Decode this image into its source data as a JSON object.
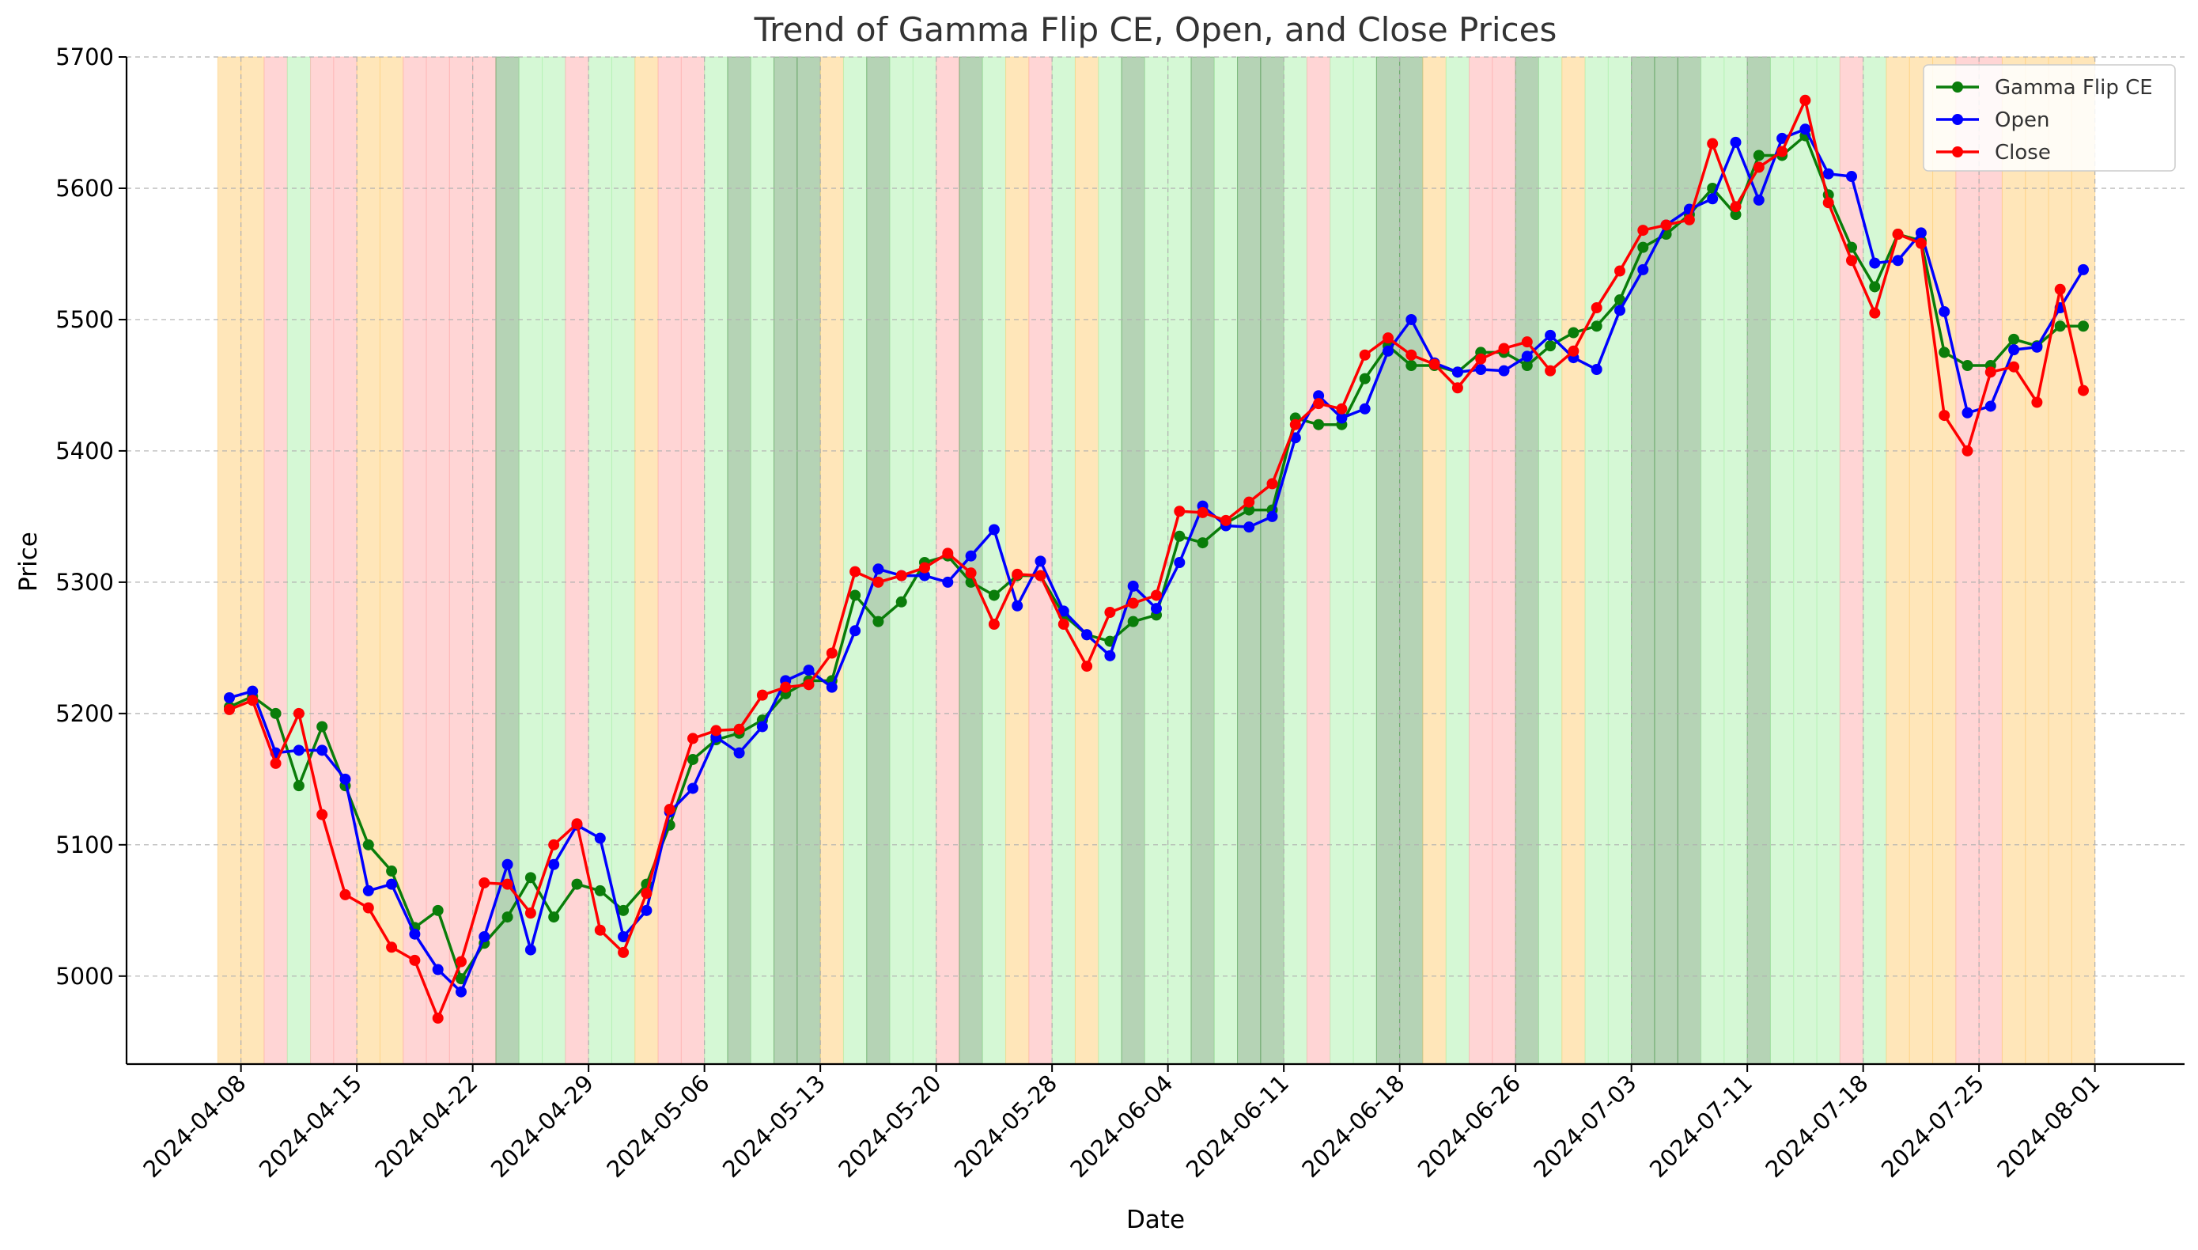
{
  "chart_data": {
    "type": "line",
    "title": "Trend of Gamma Flip CE, Open, and Close Prices",
    "xlabel": "Date",
    "ylabel": "Price",
    "ylim": [
      4933,
      5700
    ],
    "yticks": [
      5000,
      5100,
      5200,
      5300,
      5400,
      5500,
      5600,
      5700
    ],
    "x_tick_labels": [
      "2024-04-08",
      "2024-04-15",
      "2024-04-22",
      "2024-04-29",
      "2024-05-06",
      "2024-05-13",
      "2024-05-20",
      "2024-05-28",
      "2024-06-04",
      "2024-06-11",
      "2024-06-18",
      "2024-06-26",
      "2024-07-03",
      "2024-07-11",
      "2024-07-18",
      "2024-07-25",
      "2024-08-01"
    ],
    "x_tick_index": [
      0.5,
      5.5,
      10.5,
      15.5,
      20.5,
      25.5,
      30.5,
      35.5,
      40.5,
      45.5,
      50.5,
      55.5,
      60.5,
      65.5,
      70.5,
      75.5,
      80.5
    ],
    "grid": true,
    "legend_position": "top-right",
    "background_band_colors": {
      "O": "#ffd27f",
      "R": "#ffb3b3",
      "L": "#b3f2b3",
      "D": "#5a9e5a"
    },
    "background_bands": "OORLRROORRRRDLLRLLORRLDLDDOLDLLRDLORLOLDLLDLDDLRLLDDOLRRDLOLLDDDLLDLLLRLOOORROOOOO",
    "series": [
      {
        "name": "Gamma Flip CE",
        "color": "#0a7d0a",
        "values": [
          5205,
          5213,
          5200,
          5145,
          5190,
          5145,
          5100,
          5080,
          5037,
          5050,
          4998,
          5025,
          5045,
          5075,
          5045,
          5070,
          5065,
          5050,
          5070,
          5115,
          5165,
          5180,
          5185,
          5195,
          5215,
          5225,
          5225,
          5290,
          5270,
          5285,
          5315,
          5320,
          5300,
          5290,
          5305,
          5305,
          5275,
          5260,
          5255,
          5270,
          5275,
          5335,
          5330,
          5345,
          5355,
          5355,
          5425,
          5420,
          5420,
          5455,
          5480,
          5465,
          5465,
          5460,
          5475,
          5475,
          5465,
          5480,
          5490,
          5495,
          5515,
          5555,
          5565,
          5580,
          5600,
          5580,
          5625,
          5625,
          5640,
          5595,
          5555,
          5525,
          5565,
          5560,
          5475,
          5465,
          5465,
          5485,
          5480,
          5495,
          5495
        ]
      },
      {
        "name": "Open",
        "color": "#0000ff",
        "values": [
          5212,
          5217,
          5170,
          5172,
          5172,
          5150,
          5065,
          5070,
          5032,
          5005,
          4988,
          5030,
          5085,
          5020,
          5085,
          5115,
          5105,
          5030,
          5050,
          5125,
          5143,
          5182,
          5170,
          5190,
          5225,
          5233,
          5220,
          5263,
          5310,
          5305,
          5305,
          5300,
          5320,
          5340,
          5282,
          5316,
          5278,
          5260,
          5244,
          5297,
          5280,
          5315,
          5358,
          5343,
          5342,
          5350,
          5410,
          5442,
          5425,
          5432,
          5476,
          5500,
          5467,
          5460,
          5462,
          5461,
          5472,
          5488,
          5471,
          5462,
          5507,
          5538,
          5572,
          5584,
          5592,
          5635,
          5591,
          5638,
          5645,
          5611,
          5609,
          5543,
          5545,
          5566,
          5506,
          5429,
          5434,
          5477,
          5479,
          5509,
          5538
        ]
      },
      {
        "name": "Close",
        "color": "#ff0000",
        "values": [
          5203,
          5210,
          5162,
          5200,
          5123,
          5062,
          5052,
          5022,
          5012,
          4968,
          5011,
          5071,
          5070,
          5048,
          5100,
          5116,
          5035,
          5018,
          5063,
          5127,
          5181,
          5187,
          5188,
          5214,
          5220,
          5222,
          5246,
          5308,
          5300,
          5305,
          5311,
          5322,
          5307,
          5268,
          5306,
          5305,
          5268,
          5236,
          5277,
          5284,
          5290,
          5354,
          5353,
          5347,
          5361,
          5375,
          5420,
          5436,
          5432,
          5473,
          5486,
          5473,
          5466,
          5448,
          5470,
          5478,
          5483,
          5461,
          5476,
          5509,
          5537,
          5568,
          5572,
          5576,
          5634,
          5586,
          5616,
          5628,
          5667,
          5589,
          5545,
          5505,
          5565,
          5558,
          5427,
          5400,
          5460,
          5464,
          5437,
          5523,
          5446
        ]
      }
    ]
  }
}
